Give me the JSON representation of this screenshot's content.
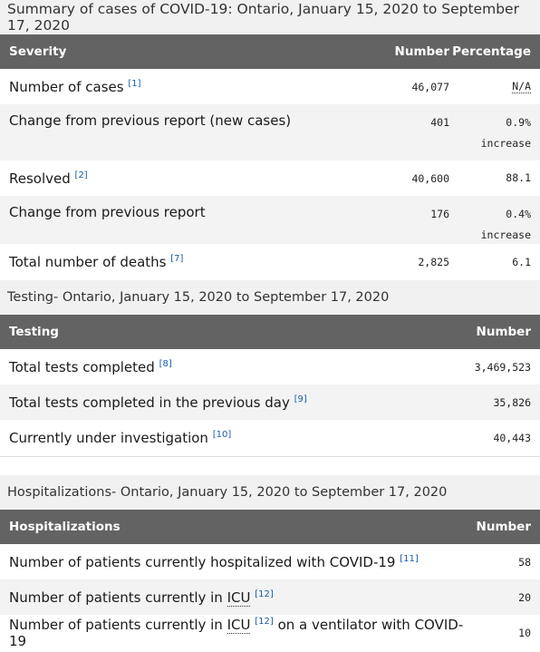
{
  "cases": {
    "caption": "Summary of cases of COVID-19: Ontario, January 15, 2020 to September 17, 2020",
    "headers": {
      "severity": "Severity",
      "number": "Number",
      "percentage": "Percentage"
    },
    "rows": [
      {
        "label": "Number of cases",
        "ref": "[1]",
        "number": "46,077",
        "pct": "N/A",
        "pct2": ""
      },
      {
        "label": "Change from previous report (new cases)",
        "ref": "",
        "number": "401",
        "pct": "0.9%",
        "pct2": "increase"
      },
      {
        "label": "Resolved",
        "ref": "[2]",
        "number": "40,600",
        "pct": "88.1",
        "pct2": ""
      },
      {
        "label": "Change from previous report",
        "ref": "",
        "number": "176",
        "pct": "0.4%",
        "pct2": "increase"
      },
      {
        "label": "Total number of deaths",
        "ref": "[7]",
        "number": "2,825",
        "pct": "6.1",
        "pct2": ""
      }
    ]
  },
  "testing": {
    "caption_strong": "Testing",
    "caption_rest": " - Ontario, January 15, 2020 to September 17, 2020",
    "headers": {
      "label": "Testing",
      "number": "Number"
    },
    "rows": [
      {
        "label": "Total tests completed",
        "ref": "[8]",
        "number": "3,469,523"
      },
      {
        "label": "Total tests completed in the previous day",
        "ref": "[9]",
        "number": "35,826"
      },
      {
        "label": "Currently under investigation",
        "ref": "[10]",
        "number": "40,443"
      }
    ]
  },
  "hosp": {
    "caption_strong": "Hospitalizations",
    "caption_rest": " - Ontario, January 15, 2020 to September 17, 2020",
    "headers": {
      "label": "Hospitalizations",
      "number": "Number"
    },
    "rows": [
      {
        "label": "Number of patients currently hospitalized with COVID-19",
        "ref": "[11]",
        "number": "58"
      },
      {
        "label_pre": "Number of patients currently in ",
        "abbr": "ICU",
        "ref": "[12]",
        "number": "20"
      },
      {
        "label_pre": "Number of patients currently in ",
        "abbr": "ICU",
        "ref": "[12]",
        "label_post": " on a ventilator with COVID-19",
        "number": "10"
      }
    ]
  }
}
